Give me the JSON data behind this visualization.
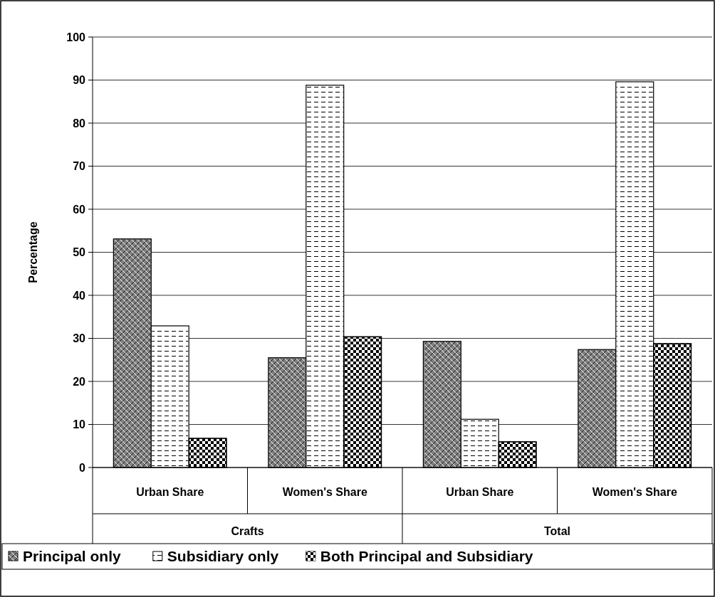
{
  "chart_data": {
    "type": "bar",
    "ylabel": "Percentage",
    "categories": [
      "Urban Share",
      "Women's Share",
      "Urban Share",
      "Women's Share"
    ],
    "annotations": [
      "Crafts",
      "Total"
    ],
    "series": [
      {
        "name": "Principal only",
        "color": "#808080",
        "values": [
          53.1,
          25.5,
          29.3,
          27.4
        ]
      },
      {
        "name": "Subsidiary only",
        "color": "#ffffff",
        "values": [
          32.9,
          88.8,
          11.2,
          89.6
        ]
      },
      {
        "name": "Both Principal and Subsidiary",
        "color": "#000000",
        "values": [
          6.8,
          30.4,
          6.0,
          28.8
        ]
      }
    ],
    "ylim": [
      0,
      100
    ],
    "yticks": [
      0,
      10,
      20,
      30,
      40,
      50,
      60,
      70,
      80,
      90,
      100
    ],
    "grid": "y",
    "legend": "bottom"
  }
}
